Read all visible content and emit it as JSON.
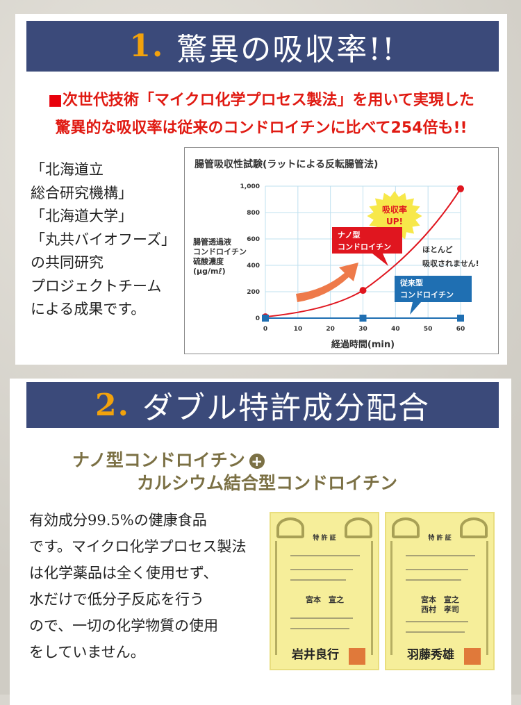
{
  "section1": {
    "number": "1.",
    "title": "驚異の吸収率!!",
    "lead_marker": "■",
    "lead_line1": "次世代技術「マイクロ化学プロセス製法」を用いて実現した",
    "lead_line2": "驚異的な吸収率は従来のコンドロイチンに比べて254倍も!!",
    "research_text": "「北海道立\n総合研究機構」\n「北海道大学」\n「丸共バイオフーズ」\nの共同研究\nプロジェクトチーム\nによる成果です。"
  },
  "chart_data": {
    "type": "line",
    "title": "腸管吸収性試験(ラットによる反転腸管法)",
    "xlabel": "経過時間(min)",
    "ylabel": "腸管透過液\nコンドロイチン\n硫酸濃度\n(μg/mℓ)",
    "xlim": [
      0,
      60
    ],
    "ylim": [
      0,
      1000
    ],
    "x_ticks": [
      0,
      10,
      20,
      30,
      40,
      50,
      60
    ],
    "y_ticks": [
      0,
      200,
      400,
      600,
      800,
      1000
    ],
    "y_tick_labels": [
      "0",
      "200",
      "400",
      "600",
      "800",
      "1,000"
    ],
    "grid": true,
    "series": [
      {
        "name": "ナノ型\nコンドロイチン",
        "color": "#e0161f",
        "x": [
          0,
          30,
          60
        ],
        "y": [
          10,
          210,
          980
        ]
      },
      {
        "name": "従来型\nコンドロイチン",
        "color": "#1f6fb2",
        "x": [
          0,
          30,
          60
        ],
        "y": [
          0,
          0,
          0
        ]
      }
    ],
    "annotations": {
      "burst": "吸収率\nUP!",
      "note": "ほとんど\n吸収されません!"
    }
  },
  "section2": {
    "number": "2.",
    "title": "ダブル特許成分配合",
    "ingredient1": "ナノ型コンドロイチン",
    "plus": "+",
    "ingredient2": "カルシウム結合型コンドロイチン",
    "body": "有効成分99.5%の健康食品\nです。マイクロ化学プロセス製法\nは化学薬品は全く使用せず、\n水だけで低分子反応を行う\nので、一切の化学物質の使用\nをしていません。",
    "certificates": [
      {
        "title": "特 許 証",
        "inventors": "宮本　宣之",
        "signature": "岩井良行"
      },
      {
        "title": "特 許 証",
        "inventors": "宮本　宣之\n西村　孝司",
        "signature": "羽藤秀雄"
      }
    ]
  },
  "colors": {
    "header": "#3b4a7a",
    "number": "#f2a20c",
    "lead": "#e01a12",
    "olive": "#7b7044"
  }
}
